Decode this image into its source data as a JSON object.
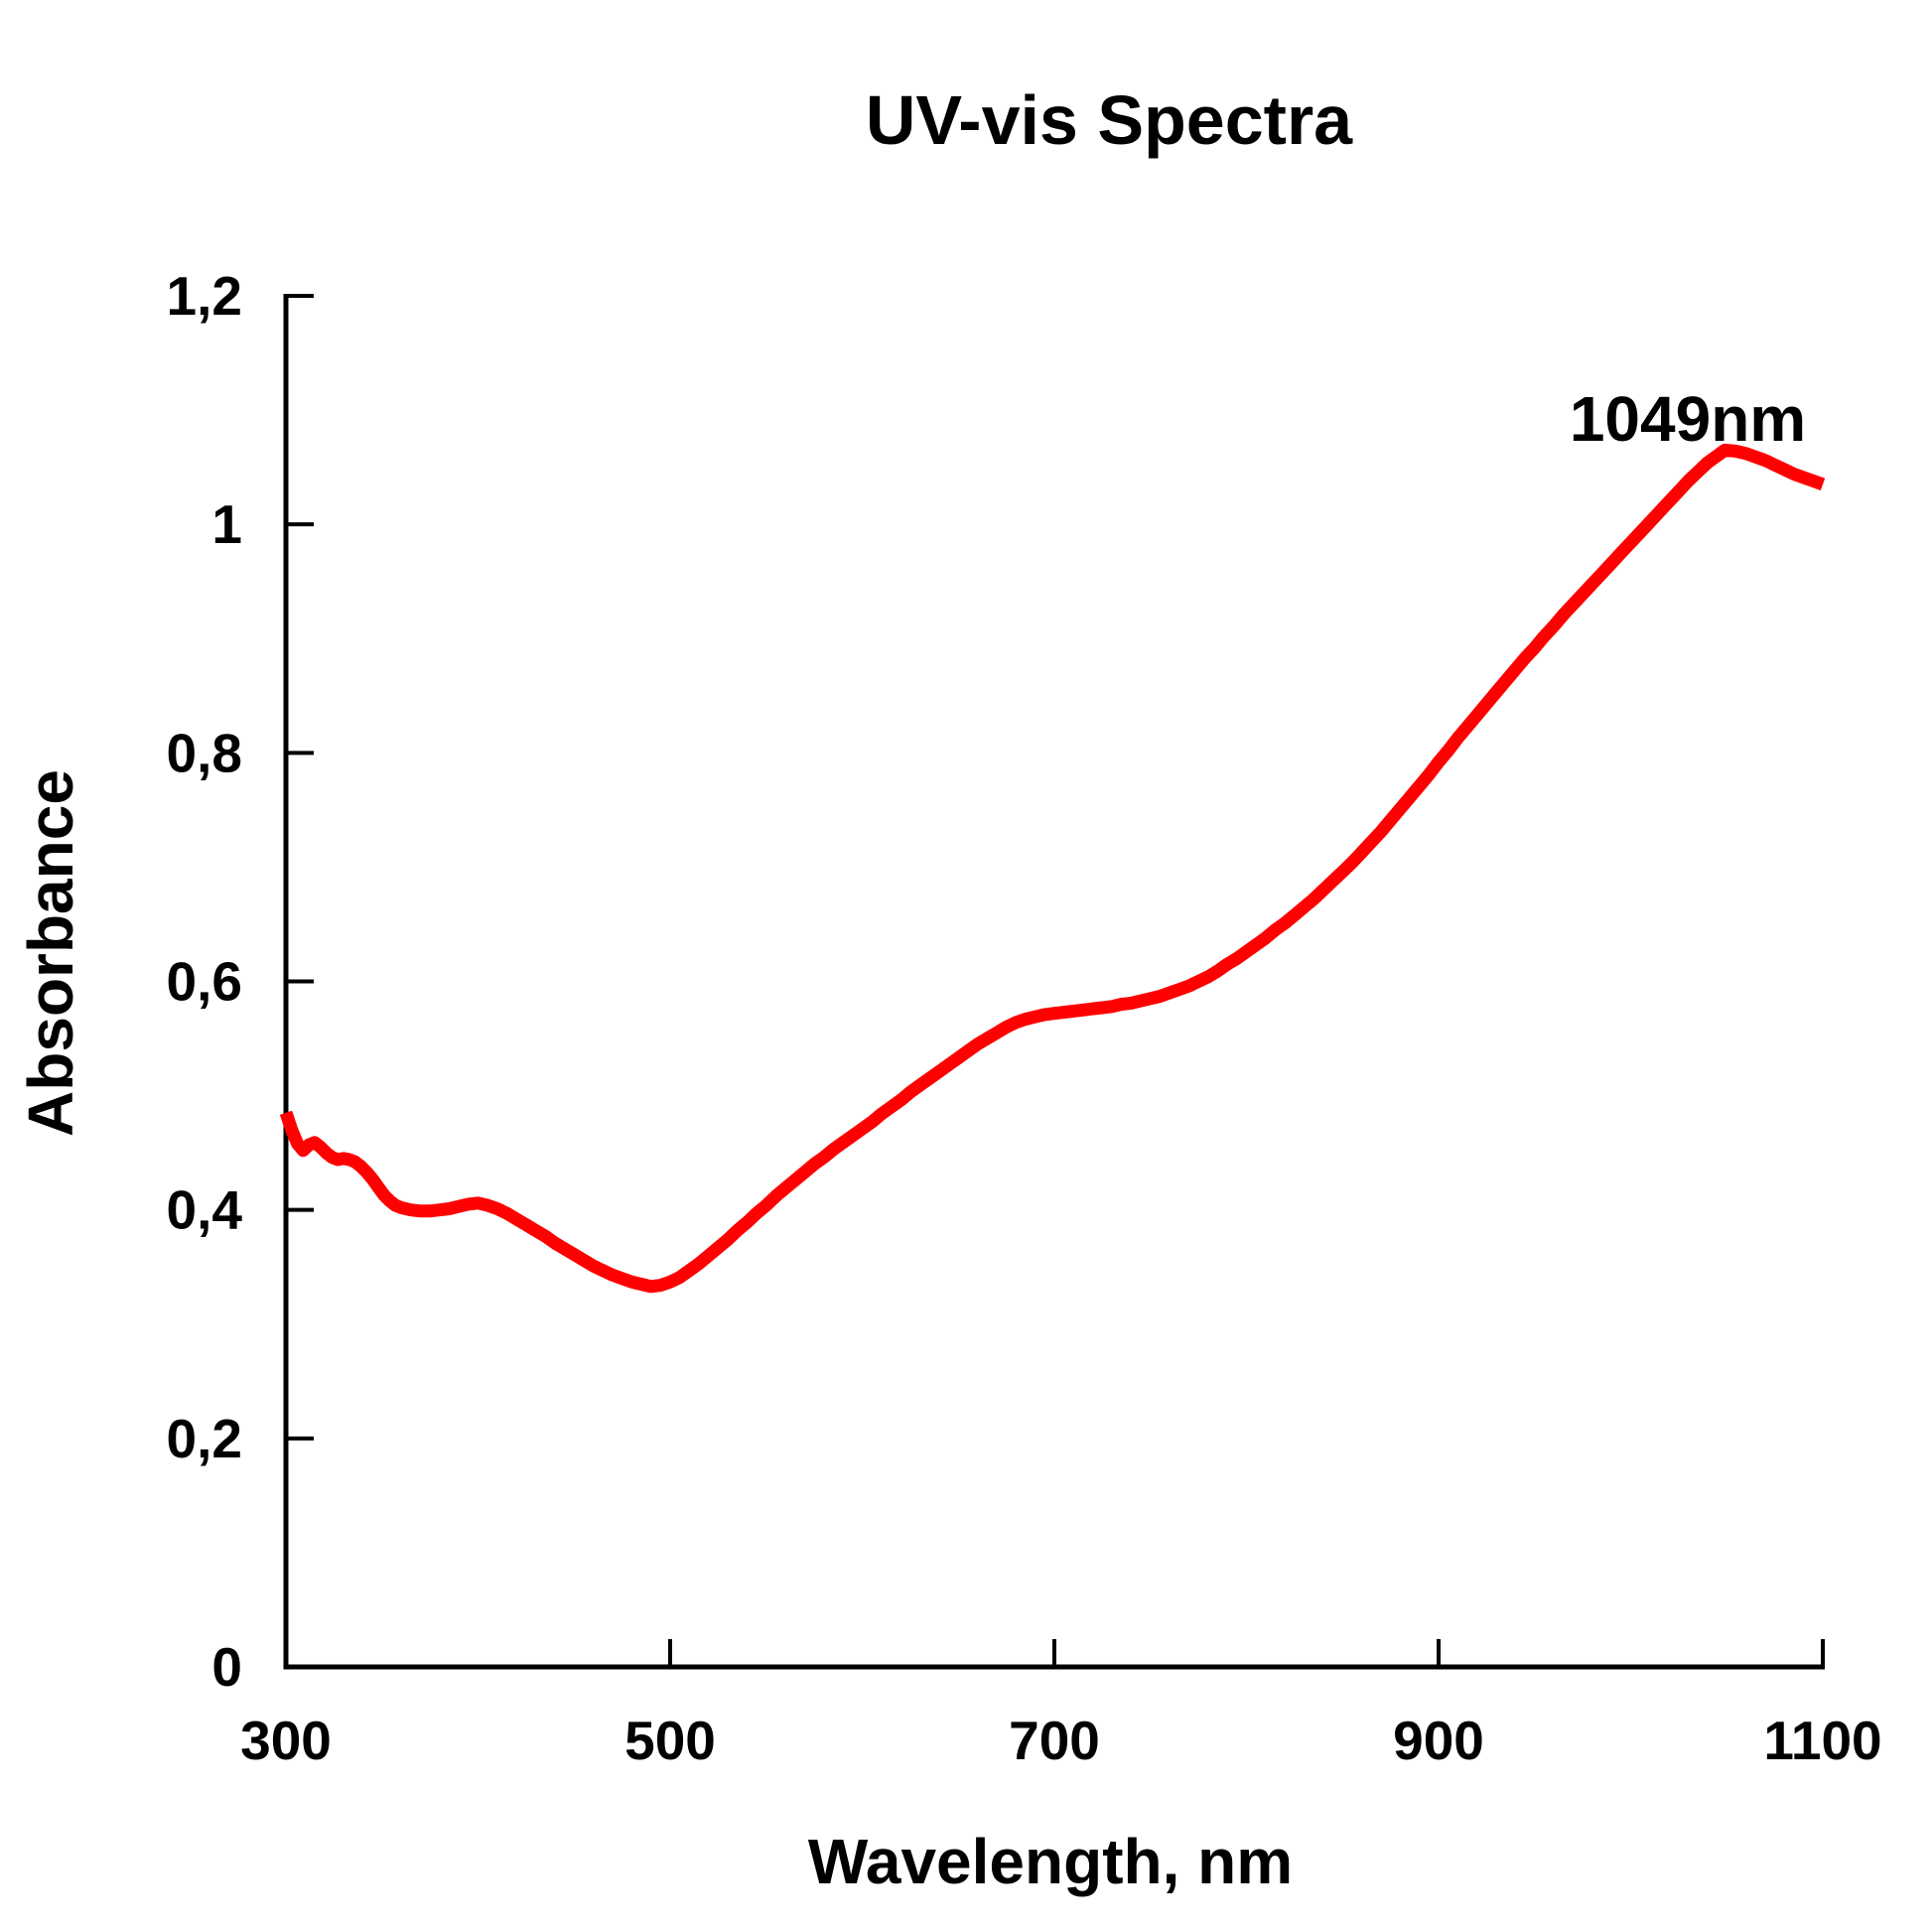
{
  "page": {
    "background_color": "#FFFFFF",
    "text_color": "#000000"
  },
  "chart_data": {
    "type": "line",
    "title": "UV-vis Spectra",
    "xlabel": "Wavelength, nm",
    "ylabel": "Absorbance",
    "xlim": [
      300,
      1100
    ],
    "ylim": [
      0,
      1.2
    ],
    "grid": false,
    "legend": "none",
    "tick_style": "inside",
    "x_ticks": {
      "values": [
        300,
        500,
        700,
        900,
        1100
      ],
      "labels": [
        "300",
        "500",
        "700",
        "900",
        "1100"
      ]
    },
    "y_ticks": {
      "values": [
        0,
        0.2,
        0.4,
        0.6,
        0.8,
        1,
        1.2
      ],
      "labels": [
        "0",
        "0,2",
        "0,4",
        "0,6",
        "0,8",
        "1",
        "1,2"
      ]
    },
    "annotation": {
      "text": "1049nm",
      "peak_wavelength_nm": 1049,
      "peak_absorbance": 1.065
    },
    "series": [
      {
        "name": "UV-vis spectrum",
        "color": "#FF0000",
        "x": [
          300,
          303,
          306,
          309,
          312,
          315,
          318,
          321,
          324,
          327,
          330,
          333,
          336,
          339,
          342,
          345,
          348,
          351,
          354,
          357,
          360,
          365,
          370,
          375,
          380,
          385,
          390,
          395,
          400,
          405,
          410,
          415,
          420,
          425,
          430,
          435,
          440,
          445,
          450,
          455,
          460,
          465,
          470,
          475,
          480,
          485,
          490,
          495,
          500,
          505,
          510,
          515,
          520,
          525,
          530,
          535,
          540,
          545,
          550,
          555,
          560,
          565,
          570,
          575,
          580,
          585,
          590,
          595,
          600,
          605,
          610,
          615,
          620,
          625,
          630,
          635,
          640,
          645,
          650,
          655,
          660,
          665,
          670,
          675,
          680,
          685,
          690,
          695,
          700,
          705,
          710,
          715,
          720,
          725,
          730,
          735,
          740,
          745,
          750,
          755,
          760,
          765,
          770,
          775,
          780,
          785,
          790,
          795,
          800,
          805,
          810,
          815,
          820,
          825,
          830,
          835,
          840,
          845,
          850,
          855,
          860,
          865,
          870,
          875,
          880,
          885,
          890,
          895,
          900,
          905,
          910,
          915,
          920,
          925,
          930,
          935,
          940,
          945,
          950,
          955,
          960,
          965,
          970,
          975,
          980,
          985,
          990,
          995,
          1000,
          1005,
          1010,
          1015,
          1020,
          1025,
          1030,
          1035,
          1040,
          1045,
          1049,
          1055,
          1060,
          1065,
          1070,
          1075,
          1080,
          1085,
          1090,
          1095,
          1100
        ],
        "y": [
          0.485,
          0.47,
          0.458,
          0.452,
          0.457,
          0.459,
          0.455,
          0.45,
          0.446,
          0.444,
          0.445,
          0.444,
          0.442,
          0.438,
          0.433,
          0.427,
          0.42,
          0.413,
          0.408,
          0.404,
          0.402,
          0.4,
          0.399,
          0.399,
          0.4,
          0.401,
          0.403,
          0.405,
          0.406,
          0.404,
          0.401,
          0.397,
          0.392,
          0.387,
          0.382,
          0.377,
          0.371,
          0.366,
          0.361,
          0.356,
          0.351,
          0.347,
          0.343,
          0.34,
          0.337,
          0.335,
          0.333,
          0.334,
          0.337,
          0.341,
          0.347,
          0.353,
          0.36,
          0.367,
          0.374,
          0.382,
          0.389,
          0.397,
          0.404,
          0.412,
          0.419,
          0.426,
          0.433,
          0.44,
          0.446,
          0.453,
          0.459,
          0.465,
          0.471,
          0.477,
          0.484,
          0.49,
          0.496,
          0.503,
          0.509,
          0.515,
          0.521,
          0.527,
          0.533,
          0.539,
          0.545,
          0.55,
          0.555,
          0.56,
          0.564,
          0.567,
          0.569,
          0.571,
          0.572,
          0.573,
          0.574,
          0.575,
          0.576,
          0.577,
          0.578,
          0.58,
          0.581,
          0.583,
          0.585,
          0.587,
          0.59,
          0.593,
          0.596,
          0.6,
          0.604,
          0.609,
          0.615,
          0.62,
          0.626,
          0.632,
          0.638,
          0.645,
          0.651,
          0.658,
          0.665,
          0.672,
          0.68,
          0.688,
          0.696,
          0.704,
          0.713,
          0.722,
          0.731,
          0.741,
          0.751,
          0.761,
          0.771,
          0.781,
          0.792,
          0.802,
          0.813,
          0.823,
          0.833,
          0.843,
          0.853,
          0.863,
          0.873,
          0.883,
          0.892,
          0.902,
          0.911,
          0.921,
          0.93,
          0.939,
          0.948,
          0.957,
          0.966,
          0.975,
          0.984,
          0.993,
          1.002,
          1.011,
          1.02,
          1.029,
          1.038,
          1.046,
          1.054,
          1.06,
          1.065,
          1.064,
          1.062,
          1.059,
          1.056,
          1.052,
          1.048,
          1.044,
          1.041,
          1.038,
          1.035
        ]
      }
    ]
  }
}
